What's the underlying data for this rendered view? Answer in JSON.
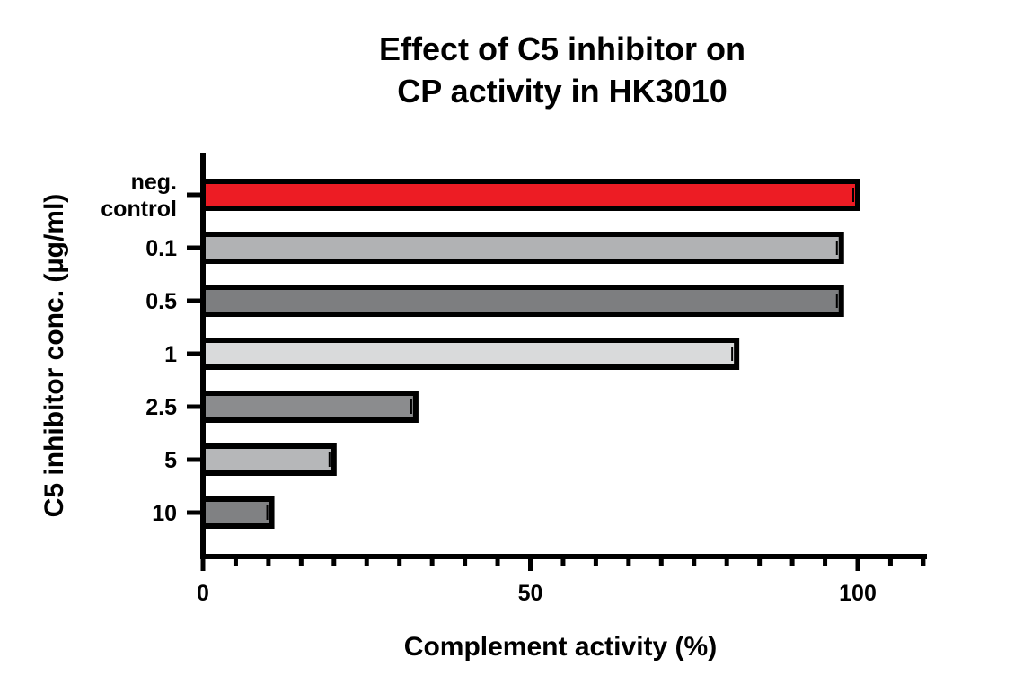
{
  "chart_data": {
    "type": "bar",
    "orientation": "horizontal",
    "title_lines": [
      "Effect of C5 inhibitor on",
      "CP activity in HK3010"
    ],
    "xlabel": "Complement activity (%)",
    "ylabel": "C5 inhibitor conc. (µg/ml)",
    "categories": [
      {
        "lines": [
          "neg.",
          "control"
        ]
      },
      {
        "lines": [
          "0.1"
        ]
      },
      {
        "lines": [
          "0.5"
        ]
      },
      {
        "lines": [
          "1"
        ]
      },
      {
        "lines": [
          "2.5"
        ]
      },
      {
        "lines": [
          "5"
        ]
      },
      {
        "lines": [
          "10"
        ]
      }
    ],
    "values": [
      100,
      97.5,
      97.5,
      81.5,
      32.5,
      20,
      10.5
    ],
    "colors": [
      "#ed1c24",
      "#b1b2b4",
      "#7d7e80",
      "#d9dadb",
      "#8b8c8e",
      "#b6b7b9",
      "#808183"
    ],
    "xlim": [
      0,
      110
    ],
    "xticks": [
      0,
      50,
      100
    ],
    "minor_tick_step": 5,
    "grid": false,
    "legend": "none"
  }
}
